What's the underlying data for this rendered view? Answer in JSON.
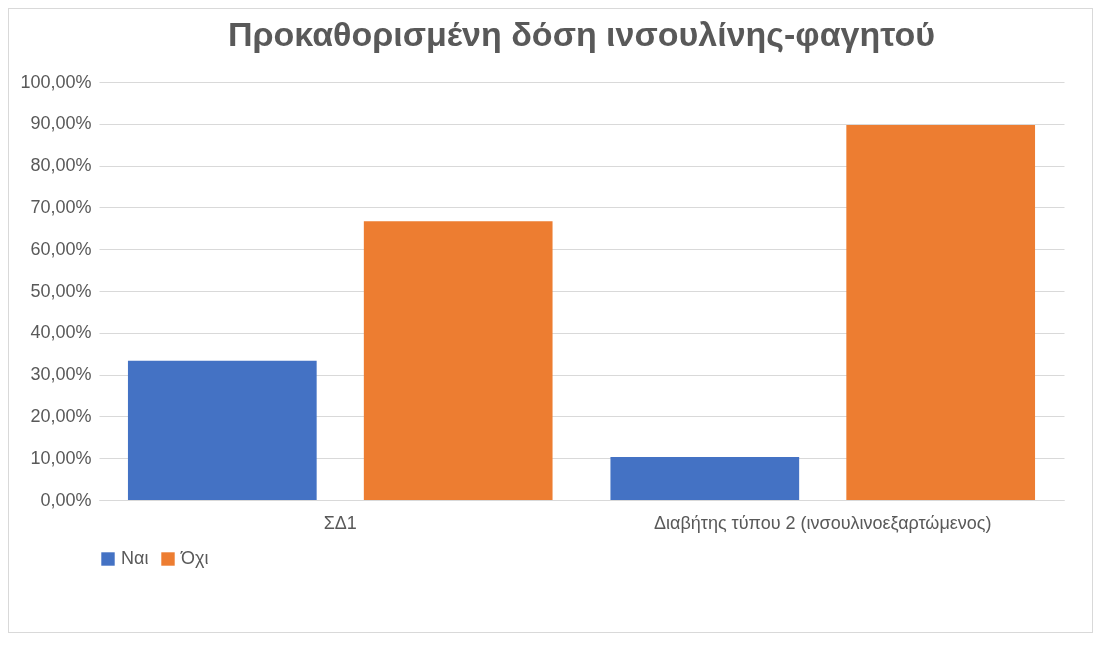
{
  "chart_data": {
    "type": "bar",
    "title": "Προκαθορισμένη δόση ινσουλίνης-φαγητού",
    "categories": [
      "ΣΔ1",
      "Διαβήτης τύπου 2 (ινσουλινοεξαρτώμενος)"
    ],
    "series": [
      {
        "name": "Ναι",
        "color": "#4472c4",
        "values": [
          33.3,
          10.3
        ]
      },
      {
        "name": "Όχι",
        "color": "#ed7d31",
        "values": [
          66.7,
          89.7
        ]
      }
    ],
    "ylim": [
      0,
      100
    ],
    "yticks": [
      {
        "value": 0,
        "label": "0,00%"
      },
      {
        "value": 10,
        "label": "10,00%"
      },
      {
        "value": 20,
        "label": "20,00%"
      },
      {
        "value": 30,
        "label": "30,00%"
      },
      {
        "value": 40,
        "label": "40,00%"
      },
      {
        "value": 50,
        "label": "50,00%"
      },
      {
        "value": 60,
        "label": "60,00%"
      },
      {
        "value": 70,
        "label": "70,00%"
      },
      {
        "value": 80,
        "label": "80,00%"
      },
      {
        "value": 90,
        "label": "90,00%"
      },
      {
        "value": 100,
        "label": "100,00%"
      }
    ],
    "grid": "y",
    "legend": "bottom"
  }
}
